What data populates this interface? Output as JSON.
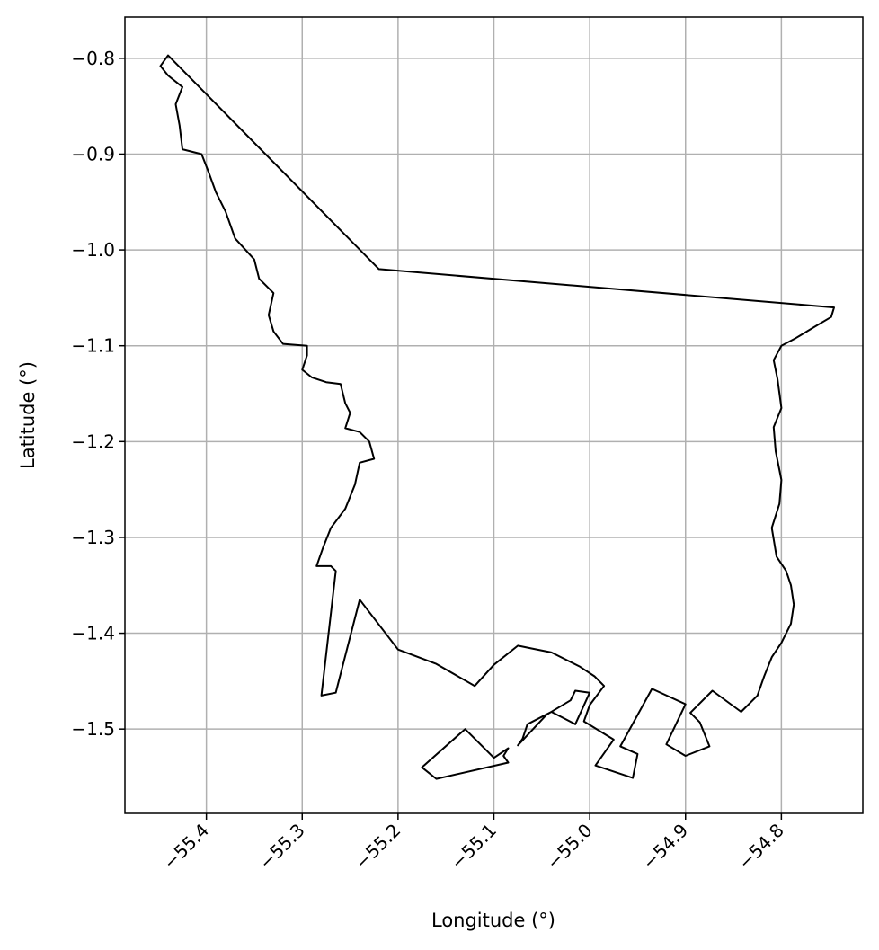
{
  "chart_data": {
    "type": "line",
    "title": "",
    "xlabel": "Longitude (°)",
    "ylabel": "Latitude (°)",
    "xlim": [
      -55.485,
      -54.715
    ],
    "ylim": [
      -1.588,
      -0.757
    ],
    "grid": true,
    "x_ticks": [
      {
        "value": -55.4,
        "label": "−55.4"
      },
      {
        "value": -55.3,
        "label": "−55.3"
      },
      {
        "value": -55.2,
        "label": "−55.2"
      },
      {
        "value": -55.1,
        "label": "−55.1"
      },
      {
        "value": -55.0,
        "label": "−55.0"
      },
      {
        "value": -54.9,
        "label": "−54.9"
      },
      {
        "value": -54.8,
        "label": "−54.8"
      }
    ],
    "y_ticks": [
      {
        "value": -0.8,
        "label": "−0.8"
      },
      {
        "value": -0.9,
        "label": "−0.9"
      },
      {
        "value": -1.0,
        "label": "−1.0"
      },
      {
        "value": -1.1,
        "label": "−1.1"
      },
      {
        "value": -1.2,
        "label": "−1.2"
      },
      {
        "value": -1.3,
        "label": "−1.3"
      },
      {
        "value": -1.4,
        "label": "−1.4"
      },
      {
        "value": -1.5,
        "label": "−1.5"
      }
    ],
    "colors": {
      "outline": "#000000",
      "grid": "#b0b0b0",
      "frame": "#000000"
    },
    "series": [
      {
        "points": [
          [
            -55.44,
            -0.797
          ],
          [
            -55.22,
            -1.02
          ],
          [
            -54.745,
            -1.06
          ],
          [
            -54.748,
            -1.07
          ],
          [
            -54.765,
            -1.08
          ],
          [
            -54.785,
            -1.092
          ],
          [
            -54.8,
            -1.1
          ],
          [
            -54.808,
            -1.115
          ],
          [
            -54.804,
            -1.135
          ],
          [
            -54.8,
            -1.165
          ],
          [
            -54.808,
            -1.185
          ],
          [
            -54.806,
            -1.21
          ],
          [
            -54.8,
            -1.24
          ],
          [
            -54.802,
            -1.265
          ],
          [
            -54.81,
            -1.29
          ],
          [
            -54.805,
            -1.32
          ],
          [
            -54.795,
            -1.335
          ],
          [
            -54.79,
            -1.35
          ],
          [
            -54.787,
            -1.37
          ],
          [
            -54.79,
            -1.39
          ],
          [
            -54.8,
            -1.41
          ],
          [
            -54.81,
            -1.425
          ],
          [
            -54.818,
            -1.445
          ],
          [
            -54.825,
            -1.465
          ],
          [
            -54.842,
            -1.482
          ],
          [
            -54.872,
            -1.46
          ],
          [
            -54.895,
            -1.483
          ],
          [
            -54.885,
            -1.493
          ],
          [
            -54.875,
            -1.518
          ],
          [
            -54.9,
            -1.528
          ],
          [
            -54.92,
            -1.516
          ],
          [
            -54.9,
            -1.474
          ],
          [
            -54.935,
            -1.458
          ],
          [
            -54.968,
            -1.518
          ],
          [
            -54.95,
            -1.526
          ],
          [
            -54.955,
            -1.551
          ],
          [
            -54.994,
            -1.538
          ],
          [
            -54.975,
            -1.511
          ],
          [
            -55.006,
            -1.492
          ],
          [
            -55.0,
            -1.475
          ],
          [
            -54.985,
            -1.455
          ],
          [
            -54.995,
            -1.445
          ],
          [
            -55.01,
            -1.435
          ],
          [
            -55.04,
            -1.42
          ],
          [
            -55.06,
            -1.416
          ],
          [
            -55.075,
            -1.413
          ],
          [
            -55.1,
            -1.433
          ],
          [
            -55.12,
            -1.455
          ],
          [
            -55.16,
            -1.432
          ],
          [
            -55.2,
            -1.417
          ],
          [
            -55.24,
            -1.365
          ],
          [
            -55.265,
            -1.462
          ],
          [
            -55.28,
            -1.465
          ],
          [
            -55.265,
            -1.335
          ],
          [
            -55.27,
            -1.33
          ],
          [
            -55.285,
            -1.33
          ],
          [
            -55.278,
            -1.31
          ],
          [
            -55.27,
            -1.29
          ],
          [
            -55.255,
            -1.27
          ],
          [
            -55.245,
            -1.245
          ],
          [
            -55.24,
            -1.222
          ],
          [
            -55.225,
            -1.218
          ],
          [
            -55.23,
            -1.2
          ],
          [
            -55.24,
            -1.19
          ],
          [
            -55.255,
            -1.186
          ],
          [
            -55.25,
            -1.17
          ],
          [
            -55.255,
            -1.16
          ],
          [
            -55.26,
            -1.14
          ],
          [
            -55.275,
            -1.138
          ],
          [
            -55.29,
            -1.133
          ],
          [
            -55.3,
            -1.125
          ],
          [
            -55.295,
            -1.11
          ],
          [
            -55.295,
            -1.1
          ],
          [
            -55.32,
            -1.098
          ],
          [
            -55.33,
            -1.085
          ],
          [
            -55.335,
            -1.068
          ],
          [
            -55.33,
            -1.045
          ],
          [
            -55.345,
            -1.03
          ],
          [
            -55.35,
            -1.01
          ],
          [
            -55.37,
            -0.988
          ],
          [
            -55.38,
            -0.96
          ],
          [
            -55.39,
            -0.94
          ],
          [
            -55.398,
            -0.918
          ],
          [
            -55.405,
            -0.9
          ],
          [
            -55.425,
            -0.895
          ],
          [
            -55.428,
            -0.87
          ],
          [
            -55.432,
            -0.848
          ],
          [
            -55.425,
            -0.83
          ],
          [
            -55.44,
            -0.818
          ],
          [
            -55.448,
            -0.808
          ],
          [
            -55.44,
            -0.797
          ]
        ]
      },
      {
        "points": [
          [
            -55.175,
            -1.54
          ],
          [
            -55.13,
            -1.5
          ],
          [
            -55.1,
            -1.53
          ],
          [
            -55.085,
            -1.52
          ],
          [
            -55.09,
            -1.528
          ],
          [
            -55.085,
            -1.535
          ],
          [
            -55.16,
            -1.552
          ],
          [
            -55.175,
            -1.54
          ]
        ]
      },
      {
        "points": [
          [
            -55.075,
            -1.517
          ],
          [
            -55.045,
            -1.485
          ],
          [
            -55.02,
            -1.47
          ],
          [
            -55.015,
            -1.46
          ],
          [
            -55.0,
            -1.462
          ],
          [
            -55.015,
            -1.495
          ],
          [
            -55.04,
            -1.482
          ],
          [
            -55.065,
            -1.495
          ],
          [
            -55.07,
            -1.51
          ],
          [
            -55.075,
            -1.517
          ]
        ]
      }
    ]
  }
}
